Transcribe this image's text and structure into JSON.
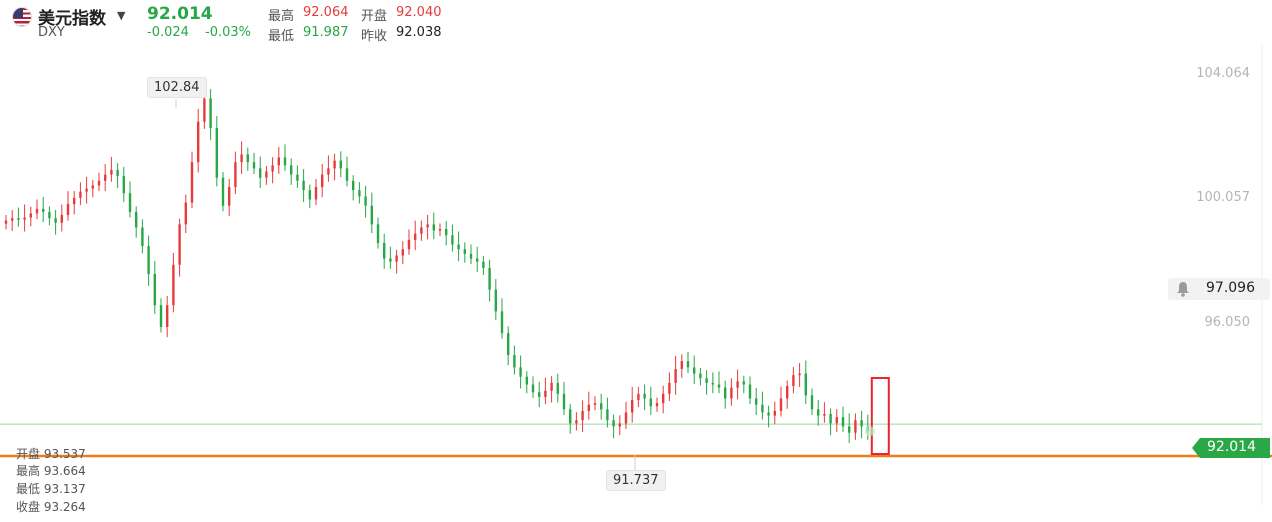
{
  "header": {
    "title": "美元指数",
    "symbol": "DXY",
    "price": "92.014",
    "change": "-0.024",
    "change_pct": "-0.03%",
    "high_label": "最高",
    "high": "92.064",
    "open_label": "开盘",
    "open": "92.040",
    "low_label": "最低",
    "low": "91.987",
    "prev_close_label": "昨收",
    "prev_close": "92.038"
  },
  "alert": {
    "value": "97.096"
  },
  "last_price_tag": "92.014",
  "ohlc_panel": {
    "open": "开盘 93.537",
    "high": "最高 93.664",
    "low": "最低 93.137",
    "close": "收盘 93.264"
  },
  "colors": {
    "up": "#e83a3a",
    "down": "#27a745",
    "price_line": "#ef7d1a",
    "highlight": "#e8262c"
  },
  "chart_data": {
    "type": "candlestick",
    "y_ticks": [
      "104.064",
      "100.057",
      "96.050"
    ],
    "ylim": [
      90.8,
      104.5
    ],
    "max_label": "102.84",
    "min_label": "91.737",
    "series": [
      {
        "values": [
          98.82,
          98.9,
          98.85,
          98.92,
          99.05,
          99.2,
          99.1,
          98.9,
          98.75,
          99.0,
          99.35,
          99.55,
          99.75,
          99.85,
          99.95,
          100.1,
          100.3,
          100.45,
          100.25,
          99.7,
          99.1,
          98.6,
          98.0,
          97.1,
          96.1,
          95.4,
          96.1,
          97.4,
          98.7,
          99.4,
          100.7,
          102.0,
          102.75,
          101.8,
          100.2,
          99.3,
          99.9,
          100.7,
          100.95,
          100.7,
          100.5,
          100.2,
          100.4,
          100.6,
          100.85,
          100.6,
          100.3,
          100.1,
          99.8,
          99.5,
          99.9,
          100.3,
          100.5,
          100.75,
          100.5,
          100.1,
          99.8,
          99.6,
          99.3,
          98.7,
          98.1,
          97.6,
          97.5,
          97.7,
          97.9,
          98.2,
          98.4,
          98.6,
          98.7,
          98.5,
          98.55,
          98.35,
          98.05,
          97.9,
          97.75,
          97.6,
          97.5,
          97.3,
          96.6,
          95.9,
          95.2,
          94.5,
          94.1,
          93.8,
          93.55,
          93.3,
          93.15,
          93.35,
          93.6,
          93.25,
          92.75,
          92.3,
          92.4,
          92.7,
          92.9,
          92.95,
          92.75,
          92.4,
          92.2,
          92.3,
          92.65,
          93.05,
          93.25,
          93.1,
          92.85,
          92.95,
          93.25,
          93.6,
          94.05,
          94.3,
          94.1,
          93.9,
          93.75,
          93.6,
          93.55,
          93.45,
          93.1,
          93.45,
          93.65,
          93.55,
          93.1,
          92.9,
          92.65,
          92.55,
          92.7,
          93.1,
          93.5,
          93.85,
          93.9,
          93.2,
          92.75,
          92.55,
          92.6,
          92.3,
          92.5,
          92.2,
          92.0,
          92.4,
          92.2,
          92.05
        ]
      }
    ]
  }
}
